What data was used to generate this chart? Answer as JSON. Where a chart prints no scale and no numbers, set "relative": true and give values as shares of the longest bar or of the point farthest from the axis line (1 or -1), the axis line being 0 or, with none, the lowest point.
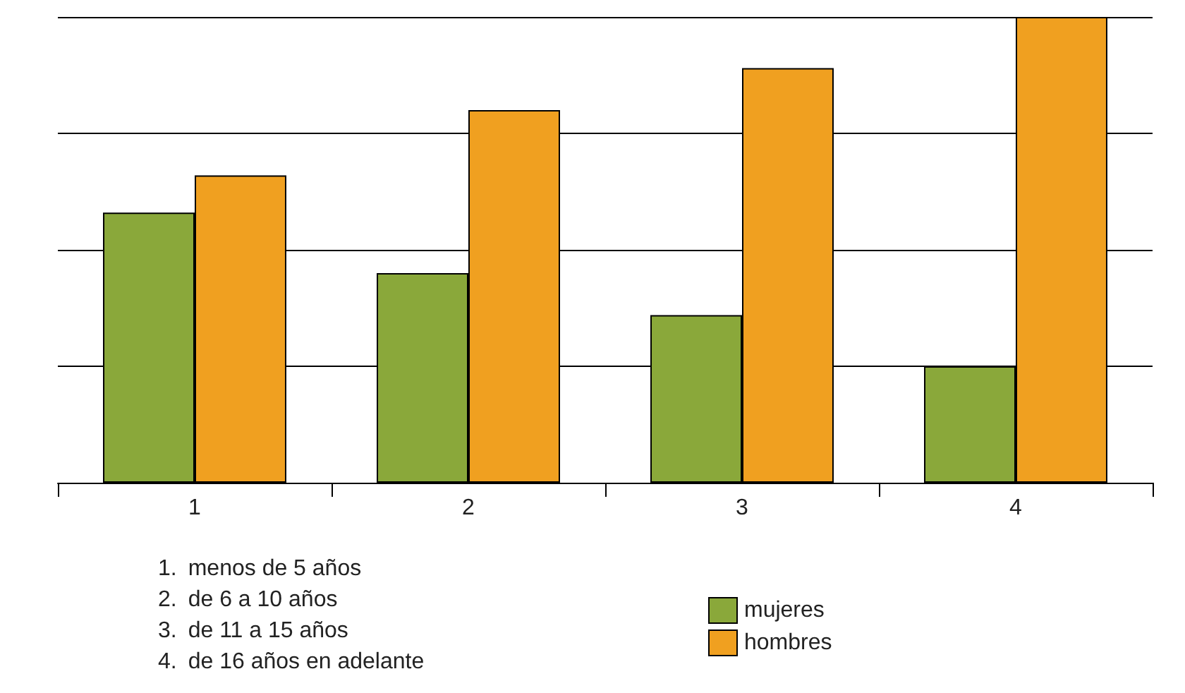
{
  "chart_data": {
    "type": "bar",
    "relative": true,
    "categories": [
      "1",
      "2",
      "3",
      "4"
    ],
    "series": [
      {
        "name": "mujeres",
        "color": "#8aa83a",
        "values": [
          0.58,
          0.45,
          0.36,
          0.25
        ]
      },
      {
        "name": "hombres",
        "color": "#f0a020",
        "values": [
          0.66,
          0.8,
          0.89,
          1
        ]
      }
    ],
    "grid": "y",
    "legend": "bottom",
    "annotations": [
      "1. menos de 5 años",
      "2. de 6 a 10 años",
      "3. de 11 a 15 años",
      "4. de 16 años en adelante"
    ]
  }
}
